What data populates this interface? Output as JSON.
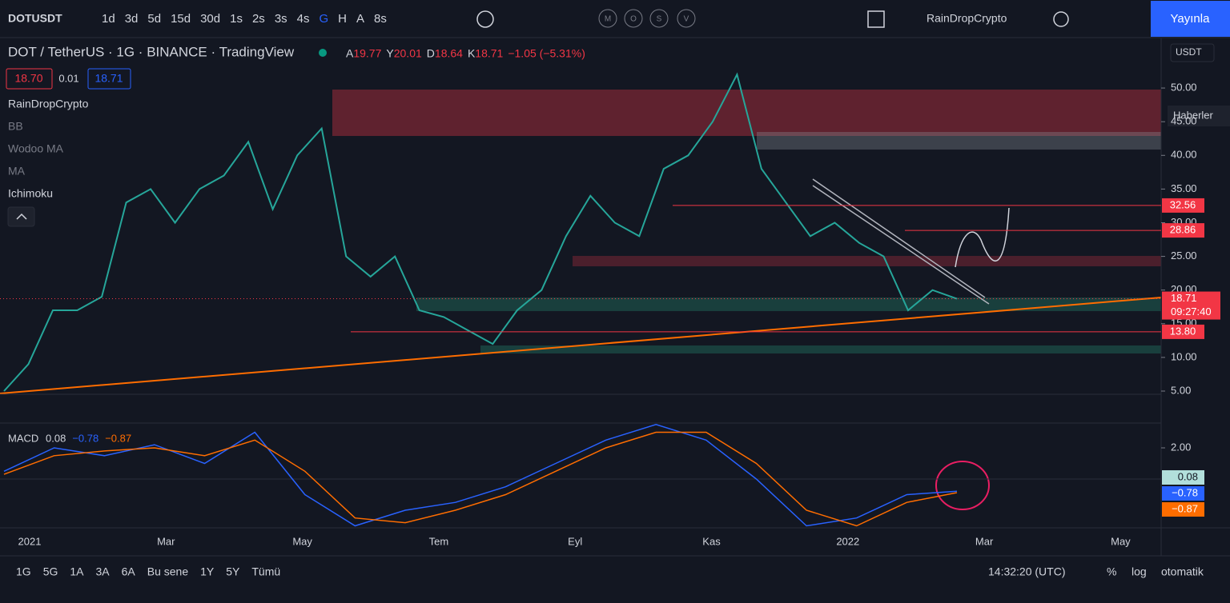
{
  "toolbar": {
    "symbol": "DOTUSDT",
    "intervals": [
      {
        "text": "1d"
      },
      {
        "text": "3d"
      },
      {
        "text": "5d"
      },
      {
        "text": "15d"
      },
      {
        "text": "30d"
      },
      {
        "text": "1s"
      },
      {
        "text": "2s"
      },
      {
        "text": "3s"
      },
      {
        "text": "4s"
      },
      {
        "text": "G",
        "active": true
      },
      {
        "text": "H"
      },
      {
        "text": "A"
      },
      {
        "text": "8s"
      }
    ],
    "indicators": [
      "M",
      "O",
      "S",
      "V"
    ],
    "user": "RainDropCrypto",
    "publish": "Yayınla"
  },
  "header": {
    "title": "DOT / TetherUS · 1G · BINANCE · TradingView",
    "ohlc": [
      {
        "k": "A",
        "v": "19.77"
      },
      {
        "k": "Y",
        "v": "20.01"
      },
      {
        "k": "D",
        "v": "18.64"
      },
      {
        "k": "K",
        "v": "18.71"
      }
    ],
    "change": "−1.05 (−5.31%)",
    "bid": "18.70",
    "spread": "0.01",
    "ask": "18.71"
  },
  "legend": {
    "author": "RainDropCrypto",
    "studies": [
      "BB",
      "Wodoo MA",
      "MA",
      "Ichimoku"
    ]
  },
  "currency": "USDT",
  "news": "Haberler",
  "price_chart": {
    "type": "line",
    "color": "#26a69a",
    "values": [
      5.0,
      9,
      17,
      17,
      19,
      33,
      35,
      30,
      35,
      37,
      42,
      32,
      40,
      44,
      25,
      22,
      25,
      17,
      16,
      14,
      12,
      17,
      20,
      28,
      34,
      30,
      28,
      38,
      40,
      45,
      52,
      38,
      33,
      28,
      30,
      27,
      25,
      17,
      20,
      18.71
    ],
    "ylim": [
      0.37,
      57.37
    ],
    "yticks": [
      {
        "value": 5,
        "label": "5.00"
      },
      {
        "value": 10,
        "label": "10.00"
      },
      {
        "value": 15,
        "label": "15.00"
      },
      {
        "value": 20,
        "label": "20.00"
      },
      {
        "value": 25,
        "label": "25.00"
      },
      {
        "value": 30,
        "label": "30.00"
      },
      {
        "value": 35,
        "label": "35.00"
      },
      {
        "value": 40,
        "label": "40.00"
      },
      {
        "value": 45,
        "label": "45.00"
      },
      {
        "value": 50,
        "label": "50.00"
      }
    ],
    "levels": [
      {
        "value": 32.56
      },
      {
        "value": 28.86
      },
      {
        "value": 13.8,
        "label": "13.80"
      }
    ],
    "last_price": 18.71,
    "countdown": "09:27:40"
  },
  "macd": {
    "label": "MACD",
    "values": [
      0.08,
      -0.78,
      -0.87
    ],
    "value_labels": [
      "0.08",
      "−0.78",
      "−0.87"
    ],
    "ylim": [
      -3.13,
      3.54
    ],
    "yticks": [
      {
        "value": 2,
        "label": "2.00"
      }
    ],
    "lines": [
      {
        "color": "#2962ff",
        "values": [
          0.5,
          2.0,
          1.5,
          2.2,
          1.0,
          3.0,
          -1.0,
          -3.0,
          -2.0,
          -1.5,
          -0.5,
          1.0,
          2.5,
          3.5,
          2.5,
          0,
          -3,
          -2.5,
          -1,
          -0.78
        ]
      },
      {
        "color": "#ff6d00",
        "values": [
          0.3,
          1.5,
          1.8,
          2.0,
          1.5,
          2.5,
          0.5,
          -2.5,
          -2.8,
          -2.0,
          -1.0,
          0.5,
          2.0,
          3.0,
          3.0,
          1.0,
          -2,
          -3,
          -1.5,
          -0.87
        ]
      }
    ]
  },
  "time_axis": [
    "2021",
    "Mar",
    "May",
    "Tem",
    "Eyl",
    "Kas",
    "2022",
    "Mar",
    "May"
  ],
  "bottom_bar": {
    "ranges": [
      "1G",
      "5G",
      "1A",
      "3A",
      "6A",
      "Bu sene",
      "1Y",
      "5Y",
      "Tümü"
    ],
    "clock": "14:32:20 (UTC)",
    "percent": "%",
    "log": "log",
    "auto": "otomatik"
  }
}
